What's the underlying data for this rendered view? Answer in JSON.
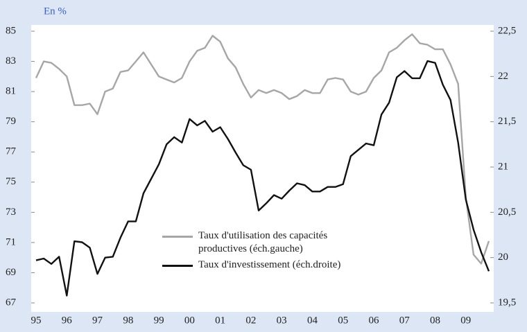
{
  "chart_data": {
    "type": "line",
    "subtitle": "En %",
    "categories": [
      "95",
      null,
      null,
      null,
      "96",
      null,
      null,
      null,
      "97",
      null,
      null,
      null,
      "98",
      null,
      null,
      null,
      "99",
      null,
      null,
      null,
      "00",
      null,
      null,
      null,
      "01",
      null,
      null,
      null,
      "02",
      null,
      null,
      null,
      "03",
      null,
      null,
      null,
      "04",
      null,
      null,
      null,
      "05",
      null,
      null,
      null,
      "06",
      null,
      null,
      null,
      "07",
      null,
      null,
      null,
      "08",
      null,
      null,
      null,
      "09",
      null,
      null,
      null
    ],
    "ylim": [
      67,
      85
    ],
    "yticks": [
      67,
      69,
      71,
      73,
      75,
      77,
      79,
      81,
      83,
      85
    ],
    "y2lim": [
      19.5,
      22.5
    ],
    "y2ticks": [
      {
        "value": 19.5,
        "label": "19,5"
      },
      20,
      {
        "value": 20.5,
        "label": "20,5"
      },
      21,
      {
        "value": 21.5,
        "label": "21,5"
      },
      22,
      {
        "value": 22.5,
        "label": "22,5"
      }
    ],
    "series": [
      {
        "name": "Taux d'utilisation des capacités productives (éch.gauche)",
        "color": "#a6a6a6",
        "values": [
          81.9,
          83.0,
          82.9,
          82.5,
          82.0,
          80.1,
          80.1,
          80.2,
          79.5,
          81.0,
          81.2,
          82.3,
          82.4,
          83.0,
          83.6,
          82.8,
          82.0,
          81.8,
          81.6,
          81.9,
          83.0,
          83.7,
          83.9,
          84.7,
          84.3,
          83.2,
          82.6,
          81.5,
          80.6,
          81.1,
          80.9,
          81.1,
          80.9,
          80.5,
          80.7,
          81.1,
          80.9,
          80.9,
          81.8,
          81.9,
          81.8,
          81.0,
          80.8,
          81.0,
          81.9,
          82.4,
          83.6,
          83.9,
          84.4,
          84.8,
          84.2,
          84.1,
          83.8,
          83.8,
          82.8,
          81.5,
          74.0,
          70.2,
          69.6,
          71.1
        ]
      },
      {
        "name": "Taux d'investissement (éch.droite)",
        "color": "#111111",
        "axis": "y2",
        "values": [
          19.97,
          19.99,
          19.93,
          20.01,
          19.58,
          20.18,
          20.17,
          20.11,
          19.82,
          20.0,
          20.01,
          20.22,
          20.4,
          20.4,
          20.71,
          20.87,
          21.03,
          21.25,
          21.33,
          21.27,
          21.53,
          21.46,
          21.51,
          21.39,
          21.44,
          21.31,
          21.16,
          21.02,
          20.97,
          20.52,
          20.6,
          20.69,
          20.65,
          20.74,
          20.82,
          20.8,
          20.73,
          20.73,
          20.78,
          20.78,
          20.81,
          21.12,
          21.19,
          21.26,
          21.24,
          21.58,
          21.71,
          21.99,
          22.06,
          21.98,
          21.98,
          22.17,
          22.15,
          21.91,
          21.74,
          21.27,
          20.64,
          20.31,
          20.06,
          19.85
        ]
      }
    ]
  }
}
